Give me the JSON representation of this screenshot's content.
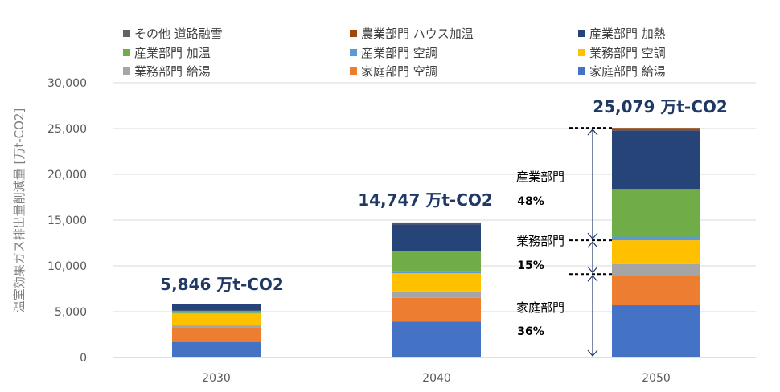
{
  "chart_data": {
    "type": "bar",
    "stacked": true,
    "title": "",
    "xlabel": "",
    "ylabel": "温室効果ガス排出量削減量 [万t-CO2]",
    "ylim": [
      0,
      30000
    ],
    "yticks": [
      "0",
      "5,000",
      "10,000",
      "15,000",
      "20,000",
      "25,000",
      "30,000"
    ],
    "grid": true,
    "legend_position": "top",
    "categories": [
      "2030",
      "2040",
      "2050"
    ],
    "series": [
      {
        "name": "家庭部門 給湯",
        "color": "#4472C4",
        "values": [
          1700,
          3900,
          5700
        ]
      },
      {
        "name": "家庭部門 空調",
        "color": "#ED7D31",
        "values": [
          1600,
          2600,
          3300
        ]
      },
      {
        "name": "業務部門 給湯",
        "color": "#A5A5A5",
        "values": [
          200,
          700,
          1200
        ]
      },
      {
        "name": "業務部門 空調",
        "color": "#FFC000",
        "values": [
          1300,
          2000,
          2600
        ]
      },
      {
        "name": "産業部門 空調",
        "color": "#5B9BD5",
        "values": [
          50,
          250,
          400
        ]
      },
      {
        "name": "産業部門 加温",
        "color": "#70AD47",
        "values": [
          250,
          2200,
          5200
        ]
      },
      {
        "name": "産業部門 加熱",
        "color": "#264478",
        "values": [
          700,
          2900,
          6400
        ]
      },
      {
        "name": "農業部門 ハウス加温",
        "color": "#9E480E",
        "values": [
          40,
          190,
          270
        ]
      },
      {
        "name": "その他 道路融雪",
        "color": "#636363",
        "values": [
          6,
          7,
          9
        ]
      }
    ],
    "totals": [
      "5,846 万t-CO2",
      "14,747 万t-CO2",
      "25,079 万t-CO2"
    ],
    "annotations": [
      {
        "label": "産業部門",
        "percent": "48%",
        "from": 12800,
        "to": 25079
      },
      {
        "label": "業務部門",
        "percent": "15%",
        "from": 9100,
        "to": 12800
      },
      {
        "label": "家庭部門",
        "percent": "36%",
        "from": 0,
        "to": 9100
      }
    ]
  }
}
